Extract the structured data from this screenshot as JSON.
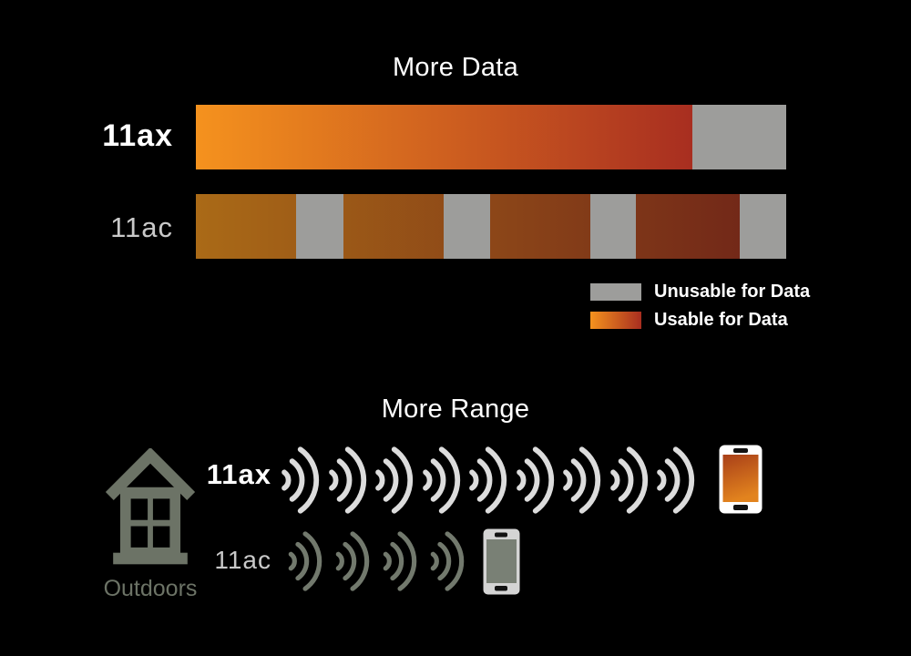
{
  "colors": {
    "background": "#000000",
    "bar_gray": "#9d9d9b",
    "gradient_start": "#f5921e",
    "gradient_end": "#a82e20",
    "ac_gradient_start": "#aa6a17",
    "ac_gradient_end": "#6e2318",
    "wifi_ax": "#dcdcdc",
    "wifi_ac": "#72796d",
    "house": "#6c7366",
    "label_dim": "#c9c9c9",
    "phone_screen_top": "#a94019",
    "phone_screen_bottom": "#e2831e",
    "phone_ac_screen": "#798075"
  },
  "more_data": {
    "title": "More Data",
    "bars": [
      {
        "label": "11ax",
        "emphasis": true,
        "usable_percent": 84.1,
        "gray_segments": [
          {
            "start": 84.1,
            "width": 15.9
          }
        ]
      },
      {
        "label": "11ac",
        "emphasis": false,
        "gray_segments": [
          {
            "start": 17.0,
            "width": 8.0
          },
          {
            "start": 42.0,
            "width": 7.9
          },
          {
            "start": 66.8,
            "width": 7.7
          },
          {
            "start": 92.1,
            "width": 7.9
          }
        ]
      }
    ],
    "legend": [
      {
        "label": "Unusable for Data",
        "swatch": "gray"
      },
      {
        "label": "Usable for Data",
        "swatch": "gradient"
      }
    ]
  },
  "more_range": {
    "title": "More Range",
    "outdoors_label": "Outdoors",
    "rows": [
      {
        "label": "11ax",
        "wifi_count": 9,
        "emphasis": true,
        "device": "smartphone-orange"
      },
      {
        "label": "11ac",
        "wifi_count": 4,
        "emphasis": false,
        "device": "smartphone-gray"
      }
    ]
  }
}
